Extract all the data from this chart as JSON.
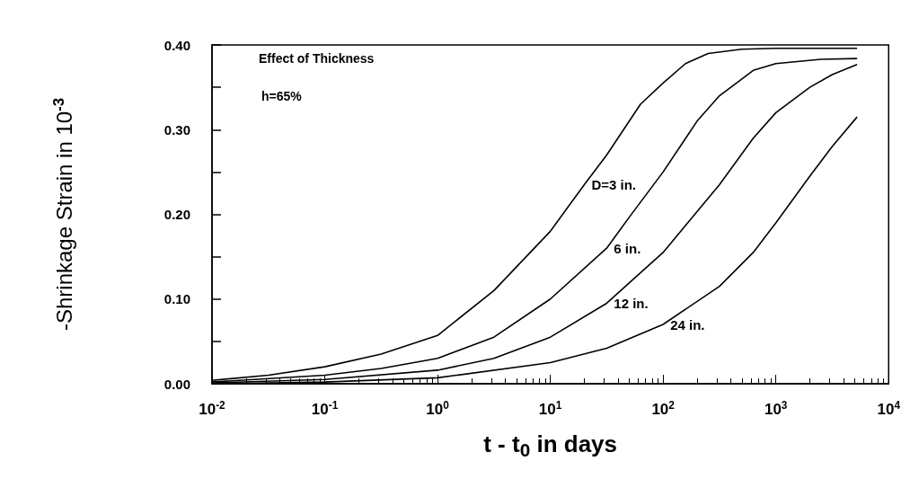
{
  "chart_data": {
    "type": "line",
    "xlabel": "t - t$_{0}$ in days",
    "ylabel": "-Shrinkage Strain in 10$^{-3}$",
    "annotations": [
      "Effect of Thickness",
      "h=65%"
    ],
    "log": "x",
    "grid": false,
    "legend": false,
    "marker": "none",
    "line_style": "solid",
    "xlim": [
      0.01,
      10000
    ],
    "xticks": [
      {
        "value": 0.01,
        "label": "10$^{-2}$"
      },
      {
        "value": 0.1,
        "label": "10$^{-1}$"
      },
      {
        "value": 1,
        "label": "10$^{0}$"
      },
      {
        "value": 10,
        "label": "10$^{1}$"
      },
      {
        "value": 100,
        "label": "10$^{2}$"
      },
      {
        "value": 1000,
        "label": "10$^{3}$"
      },
      {
        "value": 10000,
        "label": "10$^{4}$"
      }
    ],
    "ylim": [
      0,
      0.4
    ],
    "yticks": [
      {
        "value": 0,
        "label": "0.00"
      },
      {
        "value": 0.05,
        "label": null
      },
      {
        "value": 0.1,
        "label": "0.10"
      },
      {
        "value": 0.15,
        "label": null
      },
      {
        "value": 0.2,
        "label": "0.20"
      },
      {
        "value": 0.25,
        "label": null
      },
      {
        "value": 0.3,
        "label": "0.30"
      },
      {
        "value": 0.35,
        "label": null
      },
      {
        "value": 0.4,
        "label": "0.40"
      }
    ],
    "series": [
      {
        "name": "D=3 in.",
        "color": "#000000",
        "x": [
          0.01,
          0.0316,
          0.1,
          0.316,
          1,
          3.16,
          10,
          20,
          31.6,
          63,
          100,
          158,
          251,
          500,
          1000,
          5250
        ],
        "values": [
          0.004,
          0.01,
          0.02,
          0.035,
          0.057,
          0.11,
          0.18,
          0.235,
          0.27,
          0.33,
          0.355,
          0.378,
          0.39,
          0.395,
          0.396,
          0.396
        ]
      },
      {
        "name": "6 in.",
        "color": "#000000",
        "x": [
          0.01,
          0.1,
          0.316,
          1,
          3.16,
          10,
          31.6,
          51,
          100,
          200,
          316,
          630,
          1000,
          2500,
          5250
        ],
        "values": [
          0.002,
          0.01,
          0.018,
          0.03,
          0.055,
          0.1,
          0.16,
          0.198,
          0.25,
          0.31,
          0.34,
          0.37,
          0.378,
          0.383,
          0.384
        ]
      },
      {
        "name": "12 in.",
        "color": "#000000",
        "x": [
          0.01,
          0.1,
          1,
          3.16,
          10,
          31.6,
          100,
          316,
          630,
          1000,
          2000,
          3160,
          5250
        ],
        "values": [
          0.001,
          0.005,
          0.016,
          0.03,
          0.055,
          0.095,
          0.155,
          0.235,
          0.29,
          0.32,
          0.35,
          0.365,
          0.377
        ]
      },
      {
        "name": "24 in.",
        "color": "#000000",
        "x": [
          0.01,
          0.1,
          1,
          10,
          31.6,
          100,
          316,
          630,
          1000,
          2000,
          3160,
          5250
        ],
        "values": [
          0,
          0.002,
          0.007,
          0.025,
          0.042,
          0.07,
          0.115,
          0.155,
          0.19,
          0.245,
          0.28,
          0.315
        ]
      }
    ]
  }
}
